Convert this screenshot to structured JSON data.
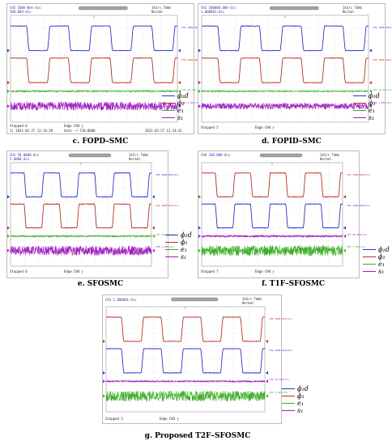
{
  "colors": {
    "phi_d": "#2b35c8",
    "phi": "#b8302a",
    "e": "#3fae2a",
    "s": "#a01fbf",
    "grid": "#c8c8c8"
  },
  "panels": [
    {
      "caption": "c. FOPD–SMC",
      "header": [
        "CH2  500V-Net-div",
        "     500.00V-div"
      ],
      "header_right": [
        "1kS/s  TmNo",
        "Normal"
      ],
      "footer_left": "Stopped      6",
      "footer_mid": "Edge  CH4  ⨍",
      "footer_sub": "1) 2021-02-27 12:14:39",
      "footer_sub2": "Auto   -/-718.0000",
      "footer_right": "2021-02-27 12:14:41",
      "channels": [
        "CH1 1000.0mV/div",
        "CH2 1000.0mV/div",
        "CH3 20.0mV/div",
        "CH4 1.00V/div"
      ],
      "legend": [
        "ϕ₁d",
        "ϕ₁",
        "e₁",
        "s₁"
      ]
    },
    {
      "caption": "d. FOPID–SMC",
      "header": [
        "CH2  500000.00V-div",
        "     1.000001-div"
      ],
      "header_right": [
        "1kS/s  TmNo",
        "Normal"
      ],
      "footer_left": "Stopped      5",
      "footer_mid": "Edge  CH4  ⨍",
      "footer_sub": "",
      "footer_sub2": "",
      "footer_right": "",
      "channels": [
        "CH1 1000.0mV/div",
        "CH2 1000.0mV/div",
        "CH3 20.0mV/div",
        "CH4 1.00V/div"
      ],
      "legend": [
        "ϕ₁d",
        "ϕ₁",
        "e₁",
        "s₁"
      ]
    },
    {
      "caption": "e. SFOSMC",
      "header": [
        "CH1  50.0000-div",
        "     5.0000-div"
      ],
      "header_right": [
        "1kS/s  TmNo",
        "Normal"
      ],
      "footer_left": "Stopped      6",
      "footer_mid": "Edge  CH4  ⨍",
      "footer_sub": "",
      "footer_sub2": "",
      "footer_right": "",
      "channels": [
        "CH1 1000.0mV/div",
        "CH2 1000.0mV/div",
        "CH3 20.0mV/div",
        "CH4 1.00V/div"
      ],
      "legend": [
        "ϕ₁d",
        "ϕ₁",
        "e₁",
        "s₁"
      ]
    },
    {
      "caption": "f. T1F–SFOSMC",
      "header": [
        "CH4  200.000-div",
        ""
      ],
      "header_right": [
        "1kS/s  TmNo",
        "Normal"
      ],
      "footer_left": "Stopped      7",
      "footer_mid": "Edge  CH4  ⨍",
      "footer_sub": "",
      "footer_sub2": "",
      "footer_right": "",
      "channels": [
        "CH2 1000.0mV/div",
        "CH1 1000.0mV/div",
        "CH3 20.0mV/div",
        "CH4 1.00V/div"
      ],
      "legend": [
        "ϕ₁d",
        "ϕ₁",
        "e₁",
        "s₁"
      ]
    },
    {
      "caption": "g. Proposed T2F–SFOSMC",
      "header": [
        "CH1  1.000001-div",
        ""
      ],
      "header_right": [
        "1kS/s  TmNo",
        "Normal"
      ],
      "footer_left": "Stopped      3",
      "footer_mid": "Edge  CH3  ⨍",
      "footer_sub": "",
      "footer_sub2": "",
      "footer_right": "",
      "channels": [
        "CH2 1000.0mV/div",
        "CH1 1000.0mV/div",
        "CH3 20.0mV/div",
        "CH4 1.00V/div"
      ],
      "legend": [
        "ϕ₁d",
        "ϕ₁",
        "e₁",
        "s₁"
      ]
    }
  ],
  "chart_data": [
    {
      "type": "line",
      "title": "c. FOPD–SMC",
      "series": [
        {
          "name": "ϕ₁d",
          "waveform": "square",
          "periods": 4,
          "high": 1,
          "low": 0
        },
        {
          "name": "ϕ₁",
          "waveform": "square",
          "periods": 4,
          "high": 1,
          "low": 0
        },
        {
          "name": "e₁",
          "waveform": "noise",
          "amplitude": 0.05
        },
        {
          "name": "s₁",
          "waveform": "noise",
          "amplitude": 0.3
        }
      ]
    },
    {
      "type": "line",
      "title": "d. FOPID–SMC",
      "series": [
        {
          "name": "ϕ₁d",
          "waveform": "square",
          "periods": 4,
          "high": 1,
          "low": 0
        },
        {
          "name": "ϕ₁",
          "waveform": "square",
          "periods": 4,
          "high": 1,
          "low": 0
        },
        {
          "name": "e₁",
          "waveform": "noise",
          "amplitude": 0.03
        },
        {
          "name": "s₁",
          "waveform": "noise",
          "amplitude": 0.2
        }
      ]
    },
    {
      "type": "line",
      "title": "e. SFOSMC",
      "series": [
        {
          "name": "ϕ₁d",
          "waveform": "square",
          "periods": 4,
          "high": 1,
          "low": 0
        },
        {
          "name": "ϕ₁",
          "waveform": "square",
          "periods": 4,
          "high": 1,
          "low": 0
        },
        {
          "name": "e₁",
          "waveform": "noise",
          "amplitude": 0.05
        },
        {
          "name": "s₁",
          "waveform": "noise",
          "amplitude": 0.35
        }
      ]
    },
    {
      "type": "line",
      "title": "f. T1F–SFOSMC",
      "series": [
        {
          "name": "ϕ₁d",
          "waveform": "square",
          "periods": 4,
          "high": 1,
          "low": 0
        },
        {
          "name": "ϕ₁",
          "waveform": "square",
          "periods": 4,
          "high": 1,
          "low": 0
        },
        {
          "name": "e₁",
          "waveform": "noise",
          "amplitude": 0.08
        },
        {
          "name": "s₁",
          "waveform": "noise",
          "amplitude": 0.5
        }
      ]
    },
    {
      "type": "line",
      "title": "g. Proposed T2F–SFOSMC",
      "series": [
        {
          "name": "ϕ₁d",
          "waveform": "square",
          "periods": 4,
          "high": 1,
          "low": 0
        },
        {
          "name": "ϕ₁",
          "waveform": "square",
          "periods": 4,
          "high": 1,
          "low": 0
        },
        {
          "name": "e₁",
          "waveform": "noise",
          "amplitude": 0.05
        },
        {
          "name": "s₁",
          "waveform": "noise",
          "amplitude": 0.6
        }
      ]
    }
  ]
}
